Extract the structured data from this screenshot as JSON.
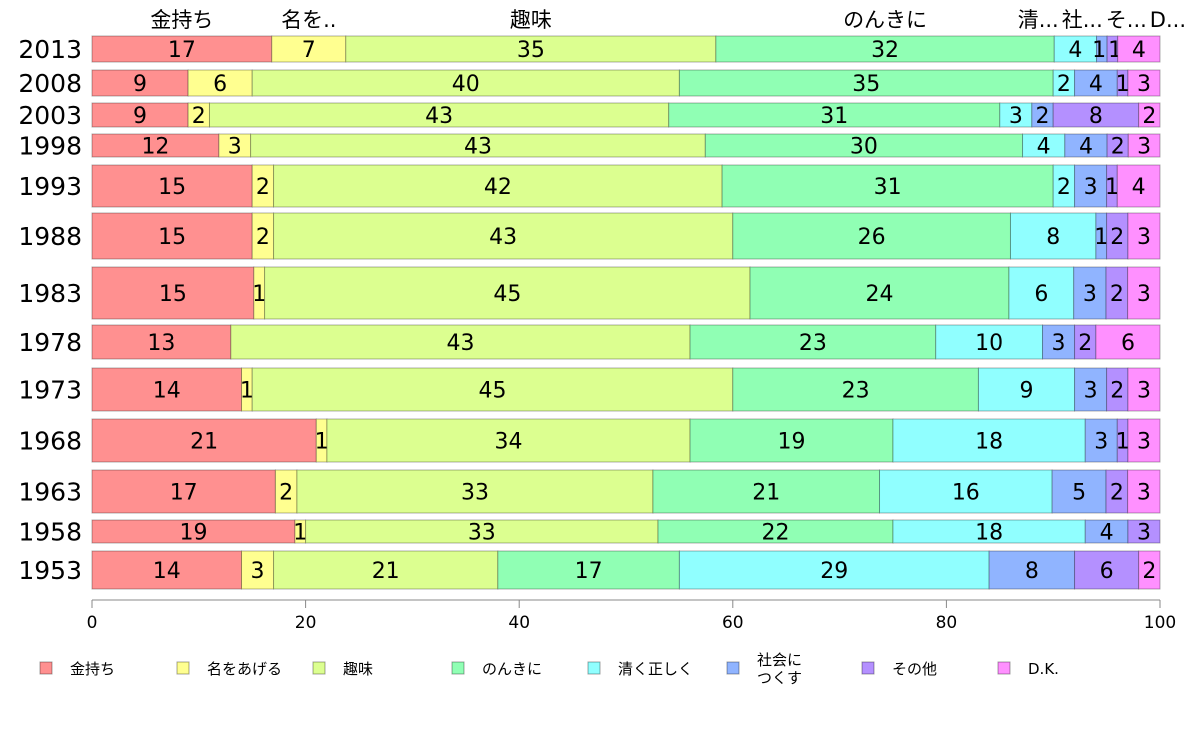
{
  "chart_data": {
    "type": "bar",
    "orientation": "horizontal-stacked-percent",
    "title": "",
    "xlabel": "",
    "ylabel": "",
    "xlim": [
      0,
      100
    ],
    "xticks": [
      "0",
      "20",
      "40",
      "60",
      "80",
      "100"
    ],
    "legend_position": "bottom",
    "categories": [
      "2013",
      "2008",
      "2003",
      "1998",
      "1993",
      "1988",
      "1983",
      "1978",
      "1973",
      "1968",
      "1963",
      "1958",
      "1953"
    ],
    "top_labels": [
      "金持ち",
      "名を..",
      "趣味",
      "のんきに",
      "清...",
      "社...",
      "そ...",
      "D..."
    ],
    "series": [
      {
        "name": "金持ち",
        "color": "#ff9090",
        "values": [
          17,
          9,
          9,
          12,
          15,
          15,
          15,
          13,
          14,
          21,
          17,
          19,
          14
        ]
      },
      {
        "name": "名をあげる",
        "color": "#ffff90",
        "values": [
          7,
          6,
          2,
          3,
          2,
          2,
          1,
          0,
          1,
          1,
          2,
          1,
          3
        ]
      },
      {
        "name": "趣味",
        "color": "#dcff90",
        "values": [
          35,
          40,
          43,
          43,
          42,
          43,
          45,
          43,
          45,
          34,
          33,
          33,
          21
        ]
      },
      {
        "name": "のんきに",
        "color": "#90ffb4",
        "values": [
          32,
          35,
          31,
          30,
          31,
          26,
          24,
          23,
          23,
          19,
          21,
          22,
          17
        ]
      },
      {
        "name": "清く正しく",
        "color": "#90ffff",
        "values": [
          4,
          2,
          3,
          4,
          2,
          8,
          6,
          10,
          9,
          18,
          16,
          18,
          29
        ]
      },
      {
        "name": "社会に\nつくす",
        "color": "#90b4ff",
        "values": [
          1,
          4,
          2,
          4,
          3,
          1,
          3,
          3,
          3,
          3,
          5,
          4,
          8
        ]
      },
      {
        "name": "その他",
        "color": "#b490ff",
        "values": [
          1,
          1,
          8,
          2,
          1,
          2,
          2,
          2,
          2,
          1,
          2,
          3,
          6
        ]
      },
      {
        "name": "D.K.",
        "color": "#ff90ff",
        "values": [
          4,
          3,
          2,
          3,
          4,
          3,
          3,
          6,
          3,
          3,
          3,
          0,
          2
        ]
      }
    ]
  }
}
